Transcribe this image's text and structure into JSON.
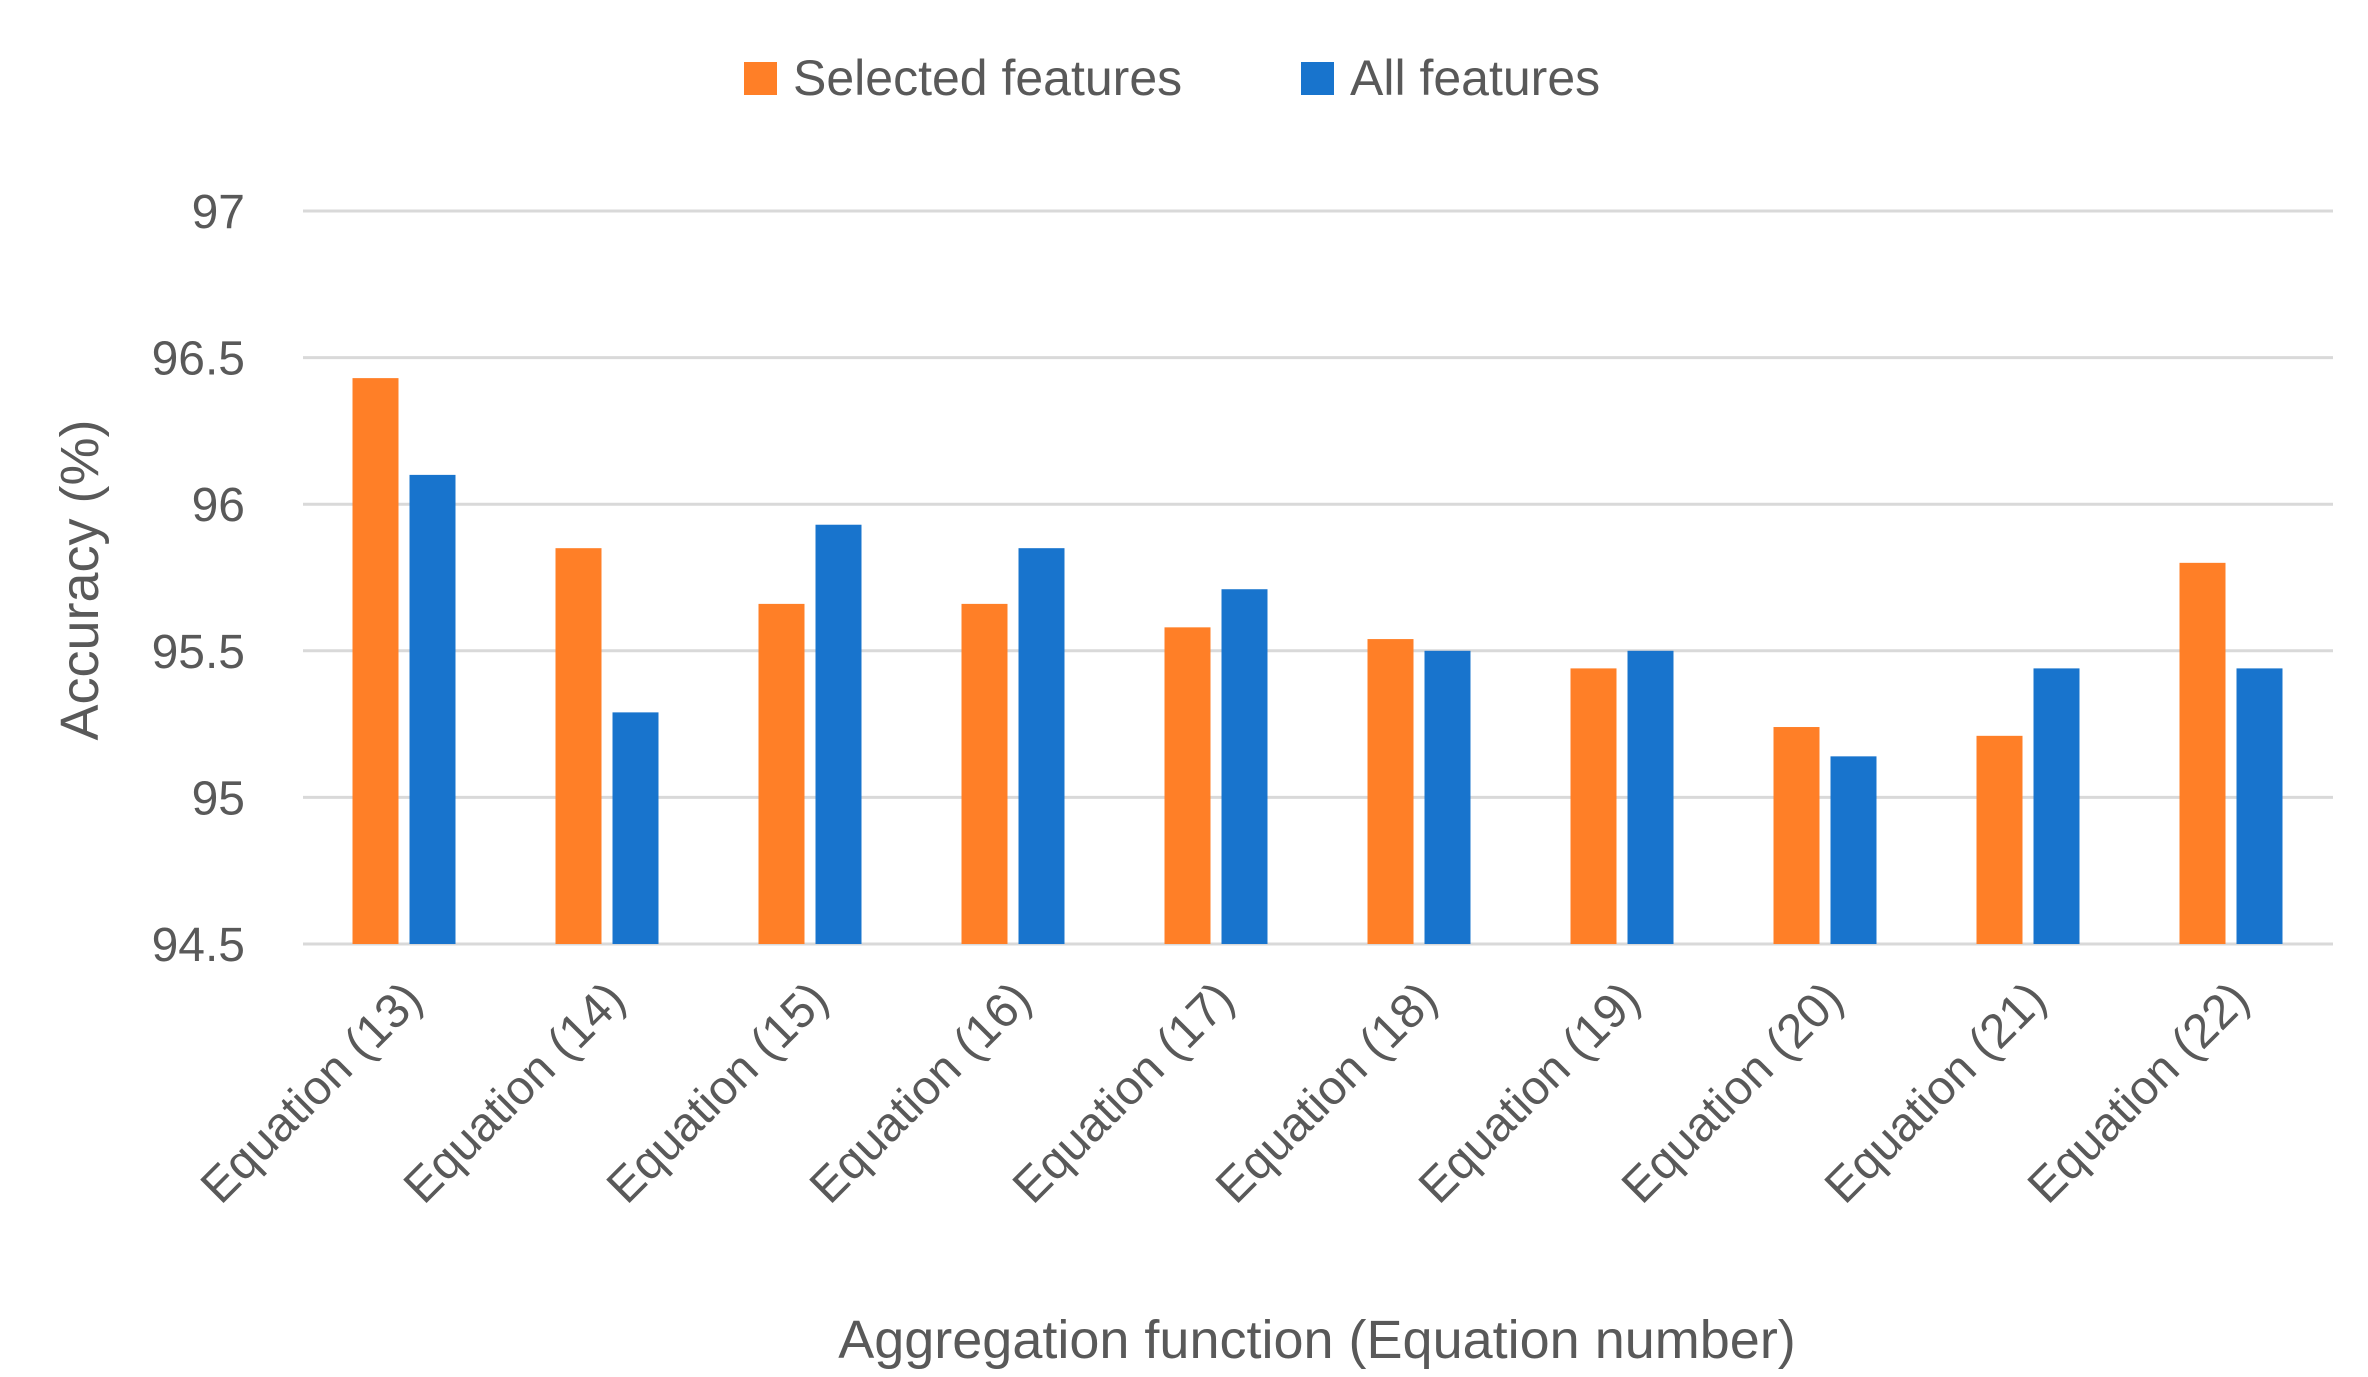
{
  "chart_data": {
    "type": "bar",
    "title": "",
    "xlabel": "Aggregation function (Equation number)",
    "ylabel": "Accuracy (%)",
    "ylim": [
      94.5,
      97
    ],
    "yticks": [
      "94.5",
      "95",
      "95.5",
      "96",
      "96.5",
      "97"
    ],
    "grid": true,
    "legend_position": "top",
    "categories": [
      "Equation (13)",
      "Equation (14)",
      "Equation (15)",
      "Equation (16)",
      "Equation (17)",
      "Equation (18)",
      "Equation (19)",
      "Equation (20)",
      "Equation (21)",
      "Equation (22)"
    ],
    "series": [
      {
        "name": "Selected features",
        "color": "#FF7F27",
        "values": [
          96.43,
          95.85,
          95.66,
          95.66,
          95.58,
          95.54,
          95.44,
          95.24,
          95.21,
          95.8
        ]
      },
      {
        "name": "All features",
        "color": "#1874CD",
        "values": [
          96.1,
          95.29,
          95.93,
          95.85,
          95.71,
          95.5,
          95.5,
          95.14,
          95.44,
          95.44
        ]
      }
    ]
  }
}
